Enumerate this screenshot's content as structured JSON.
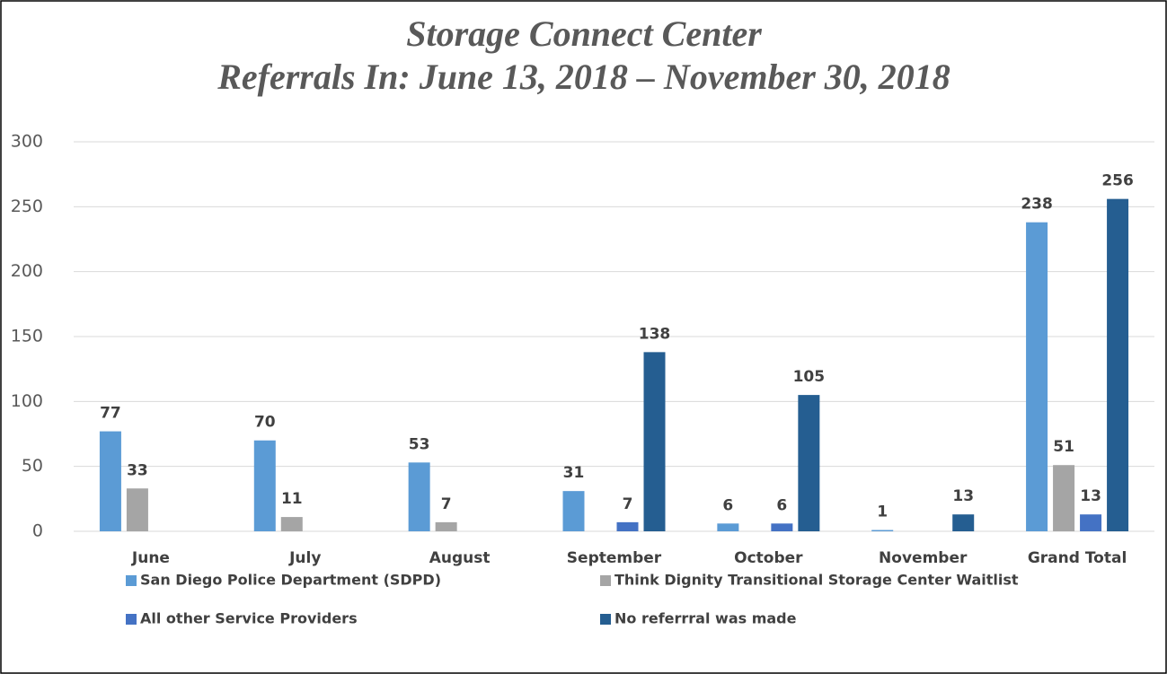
{
  "chart_data": {
    "type": "bar",
    "title": [
      "Storage Connect Center",
      "Referrals In: June 13, 2018 – November 30, 2018"
    ],
    "categories": [
      "June",
      "July",
      "August",
      "September",
      "October",
      "November",
      "Grand Total"
    ],
    "series": [
      {
        "name": "San Diego Police Department (SDPD)",
        "color": "#5b9bd5",
        "values": [
          77,
          70,
          53,
          31,
          6,
          1,
          238
        ]
      },
      {
        "name": "Think Dignity Transitional Storage Center Waitlist",
        "color": "#a5a5a5",
        "values": [
          33,
          11,
          7,
          null,
          null,
          null,
          51
        ]
      },
      {
        "name": "All other Service Providers",
        "color": "#4472c4",
        "values": [
          null,
          null,
          null,
          7,
          6,
          null,
          13
        ]
      },
      {
        "name": "No referrral was made",
        "color": "#255e91",
        "values": [
          null,
          null,
          null,
          138,
          105,
          13,
          256
        ]
      }
    ],
    "ylim": [
      0,
      300
    ],
    "yticks": [
      0,
      50,
      100,
      150,
      200,
      250,
      300
    ],
    "grid": true,
    "legend": "bottom"
  }
}
